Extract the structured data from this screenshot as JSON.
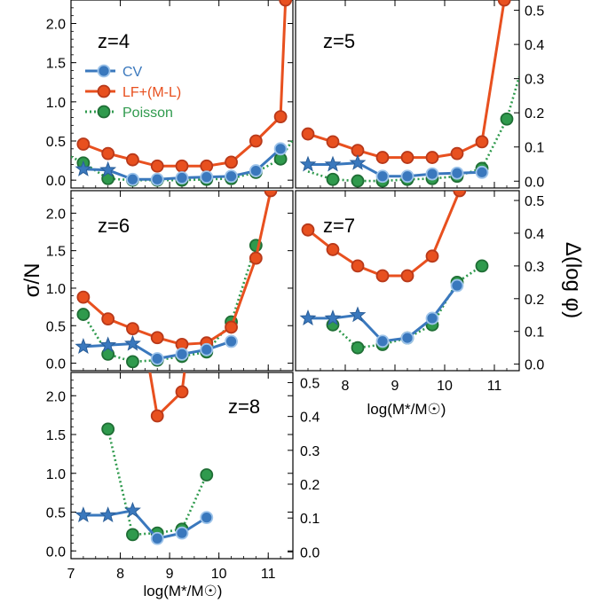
{
  "figure": {
    "ylabel_left": "σ/N",
    "ylabel_right": "Δ(log φ)",
    "xlabel": "log(M*/M☉)",
    "x_tick_labels": [
      "7",
      "8",
      "9",
      "10",
      "11"
    ],
    "left_tick_labels": [
      "0.0",
      "0.5",
      "1.0",
      "1.5",
      "2.0"
    ],
    "right_tick_labels": [
      "0.0",
      "0.1",
      "0.2",
      "0.3",
      "0.4",
      "0.5"
    ]
  },
  "legend": [
    {
      "name": "CV",
      "color": "#3a78bd",
      "line": "solid",
      "marker": "circle"
    },
    {
      "name": "LF+(M-L)",
      "color": "#e8501f",
      "line": "solid",
      "marker": "circle"
    },
    {
      "name": "Poisson",
      "color": "#2f9a4d",
      "line": "dotted",
      "marker": "circle"
    }
  ],
  "chart_data": [
    {
      "type": "line",
      "title": "z=4",
      "xlim": [
        7,
        11.5
      ],
      "ylim": [
        -0.1,
        2.3
      ],
      "y2lim": [
        -0.02,
        0.53
      ],
      "series": [
        {
          "name": "CV",
          "x": [
            7.25,
            7.75,
            8.25,
            8.75,
            9.25,
            9.75,
            10.25,
            10.75,
            11.25
          ],
          "y": [
            0.14,
            0.13,
            0.01,
            0.01,
            0.03,
            0.04,
            0.05,
            0.12,
            0.4
          ],
          "stars_until": 1
        },
        {
          "name": "LF+(M-L)",
          "x": [
            7.25,
            7.75,
            8.25,
            8.75,
            9.25,
            9.75,
            10.25,
            10.75,
            11.25,
            11.35
          ],
          "y": [
            0.46,
            0.34,
            0.26,
            0.18,
            0.18,
            0.18,
            0.23,
            0.5,
            0.81,
            2.3
          ]
        },
        {
          "name": "Poisson",
          "x": [
            7.0,
            7.25,
            7.75,
            8.25,
            8.75,
            9.25,
            9.75,
            10.25,
            10.75,
            11.25,
            11.5
          ],
          "y": [
            0.3,
            0.22,
            0.02,
            0.0,
            0.0,
            0.0,
            0.01,
            0.02,
            0.1,
            0.27,
            0.52
          ],
          "markers": [
            1,
            2,
            3,
            4,
            5,
            6,
            7,
            8,
            9
          ]
        }
      ]
    },
    {
      "type": "line",
      "title": "z=5",
      "xlim": [
        7,
        11.5
      ],
      "ylim": [
        -0.1,
        2.3
      ],
      "y2lim": [
        -0.02,
        0.53
      ],
      "series": [
        {
          "name": "CV",
          "x": [
            7.25,
            7.75,
            8.25,
            8.75,
            9.25,
            9.75,
            10.25,
            10.75
          ],
          "y": [
            0.2,
            0.2,
            0.22,
            0.05,
            0.05,
            0.08,
            0.09,
            0.1
          ],
          "stars_until": 2
        },
        {
          "name": "LF+(M-L)",
          "x": [
            7.25,
            7.75,
            8.25,
            8.75,
            9.25,
            9.75,
            10.25,
            10.75,
            11.2
          ],
          "y": [
            0.59,
            0.49,
            0.38,
            0.29,
            0.29,
            0.29,
            0.34,
            0.49,
            2.3
          ]
        },
        {
          "name": "Poisson",
          "x": [
            7.25,
            7.75,
            8.25,
            8.75,
            9.25,
            9.75,
            10.25,
            10.75,
            11.25,
            11.5
          ],
          "y": [
            0.11,
            0.01,
            -0.01,
            -0.01,
            0.01,
            0.02,
            0.05,
            0.15,
            0.78,
            1.32
          ],
          "markers": [
            1,
            2,
            3,
            4,
            5,
            6,
            7,
            8
          ]
        }
      ]
    },
    {
      "type": "line",
      "title": "z=6",
      "xlim": [
        7,
        11.5
      ],
      "ylim": [
        -0.1,
        2.3
      ],
      "y2lim": [
        -0.02,
        0.53
      ],
      "series": [
        {
          "name": "CV",
          "x": [
            7.25,
            7.75,
            8.25,
            8.75,
            9.25,
            9.75,
            10.25
          ],
          "y": [
            0.22,
            0.24,
            0.26,
            0.06,
            0.12,
            0.18,
            0.29
          ],
          "stars_until": 2
        },
        {
          "name": "LF+(M-L)",
          "x": [
            7.25,
            7.75,
            8.25,
            8.75,
            9.25,
            9.75,
            10.25,
            10.75,
            11.05
          ],
          "y": [
            0.88,
            0.59,
            0.46,
            0.34,
            0.25,
            0.27,
            0.48,
            1.4,
            2.3
          ]
        },
        {
          "name": "Poisson",
          "x": [
            7.25,
            7.75,
            8.25,
            8.75,
            9.25,
            9.75,
            10.25,
            10.75
          ],
          "y": [
            0.65,
            0.12,
            0.02,
            0.04,
            0.09,
            0.15,
            0.55,
            1.57
          ]
        }
      ]
    },
    {
      "type": "line",
      "title": "z=7",
      "xlim": [
        7,
        11.5
      ],
      "ylim": [
        -0.02,
        0.53
      ],
      "y2lim": [
        -0.02,
        0.53
      ],
      "series": [
        {
          "name": "CV",
          "x": [
            7.25,
            7.75,
            8.25,
            8.75,
            9.25,
            9.75,
            10.25
          ],
          "y": [
            0.14,
            0.14,
            0.15,
            0.07,
            0.08,
            0.14,
            0.24
          ],
          "stars_until": 2
        },
        {
          "name": "LF+(M-L)",
          "x": [
            7.25,
            7.75,
            8.25,
            8.75,
            9.25,
            9.75,
            10.3
          ],
          "y": [
            0.41,
            0.35,
            0.3,
            0.27,
            0.27,
            0.33,
            0.53
          ]
        },
        {
          "name": "Poisson",
          "x": [
            7.75,
            8.25,
            8.75,
            9.25,
            9.75,
            10.25,
            10.75
          ],
          "y": [
            0.12,
            0.05,
            0.06,
            0.08,
            0.12,
            0.25,
            0.3
          ]
        }
      ]
    },
    {
      "type": "line",
      "title": "z=8",
      "xlim": [
        7,
        11.5
      ],
      "ylim": [
        -0.1,
        2.3
      ],
      "y2lim": [
        -0.02,
        0.53
      ],
      "series": [
        {
          "name": "CV",
          "x": [
            7.25,
            7.75,
            8.25,
            8.75,
            9.25,
            9.75
          ],
          "y": [
            0.46,
            0.46,
            0.52,
            0.16,
            0.23,
            0.43
          ],
          "stars_until": 2
        },
        {
          "name": "LF+(M-L)",
          "x": [
            8.6,
            8.75,
            9.25,
            9.3
          ],
          "y": [
            2.3,
            1.74,
            2.05,
            2.3
          ],
          "markers": [
            1,
            2
          ]
        },
        {
          "name": "Poisson",
          "x": [
            7.75,
            8.25,
            8.75,
            9.25,
            9.75
          ],
          "y": [
            1.57,
            0.21,
            0.23,
            0.28,
            0.98
          ]
        }
      ]
    }
  ]
}
